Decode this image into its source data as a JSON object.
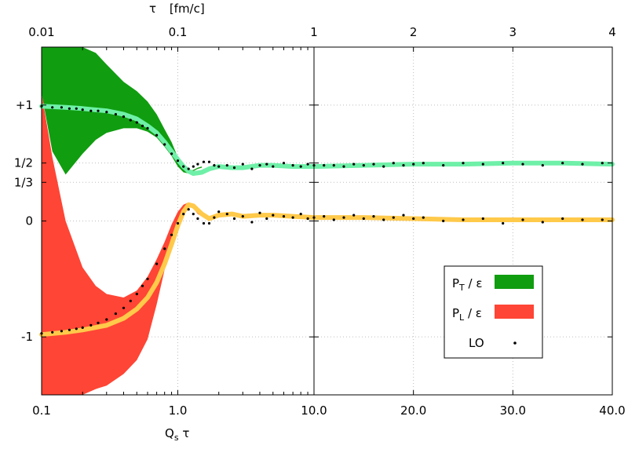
{
  "chart_data": {
    "type": "line",
    "title": "",
    "top_axis": {
      "label": "τ",
      "unit": "[fm/c]",
      "ticks": [
        "0.01",
        "0.1",
        "1",
        "2",
        "3",
        "4"
      ]
    },
    "bottom_axis": {
      "label_main": "Q",
      "label_sub": "s",
      "label_tail": " τ",
      "ticks": [
        "0.1",
        "1.0",
        "10.0",
        "20.0",
        "30.0",
        "40.0"
      ],
      "scale_left": "log",
      "scale_left_range": [
        0.1,
        10
      ],
      "scale_right": "linear",
      "scale_right_range": [
        10,
        40
      ]
    },
    "y_axis": {
      "ticks": [
        {
          "label": "+1",
          "value": 1
        },
        {
          "label": "1/2",
          "value": 0.5
        },
        {
          "label": "1/3",
          "value": 0.3333
        },
        {
          "label": "0",
          "value": 0
        },
        {
          "label": "-1",
          "value": -1
        }
      ],
      "ylim": [
        -1.5,
        1.5
      ]
    },
    "grid": true,
    "legend": {
      "placement": "bottom-right",
      "entries": [
        {
          "main": "P",
          "sub": "T",
          "tail": " / ε",
          "color": "#109d10",
          "kind": "band"
        },
        {
          "main": "P",
          "sub": "L",
          "tail": " / ε",
          "color": "#ff4535",
          "kind": "band"
        },
        {
          "main": "LO",
          "sub": "",
          "tail": "",
          "color": "#000000",
          "kind": "points"
        }
      ]
    },
    "series": [
      {
        "name": "P_T / ε (classical spread)",
        "color": "#109d10",
        "x": [
          0.1,
          0.12,
          0.15,
          0.2,
          0.25,
          0.3,
          0.4,
          0.5,
          0.6,
          0.7,
          0.8,
          0.9,
          1.0,
          1.1,
          1.2,
          1.3,
          1.4,
          1.5
        ],
        "upper": [
          1.5,
          1.5,
          1.5,
          1.5,
          1.45,
          1.35,
          1.2,
          1.12,
          1.03,
          0.92,
          0.79,
          0.68,
          0.55,
          0.46,
          0.43,
          0.44,
          0.46,
          0.47
        ],
        "lower": [
          1.1,
          0.6,
          0.4,
          0.58,
          0.7,
          0.76,
          0.8,
          0.8,
          0.77,
          0.72,
          0.64,
          0.56,
          0.47,
          0.42,
          0.41,
          0.43,
          0.45,
          0.46
        ]
      },
      {
        "name": "P_L / ε (classical spread)",
        "color": "#ff4535",
        "x": [
          0.1,
          0.12,
          0.15,
          0.2,
          0.25,
          0.3,
          0.4,
          0.5,
          0.6,
          0.7,
          0.8,
          0.9,
          1.0,
          1.1,
          1.2,
          1.3,
          1.4,
          1.5
        ],
        "upper": [
          1.1,
          0.55,
          0.0,
          -0.4,
          -0.56,
          -0.63,
          -0.66,
          -0.6,
          -0.48,
          -0.33,
          -0.18,
          -0.03,
          0.08,
          0.14,
          0.16,
          0.12,
          0.07,
          0.05
        ],
        "lower": [
          -1.5,
          -1.5,
          -1.5,
          -1.5,
          -1.45,
          -1.42,
          -1.32,
          -1.2,
          -1.02,
          -0.72,
          -0.42,
          -0.17,
          -0.02,
          0.08,
          0.13,
          0.11,
          0.06,
          0.04
        ]
      },
      {
        "name": "P_T / ε",
        "color": "#6ff0a8",
        "x": [
          0.1,
          0.15,
          0.2,
          0.3,
          0.4,
          0.5,
          0.6,
          0.7,
          0.8,
          0.9,
          1.0,
          1.1,
          1.2,
          1.3,
          1.5,
          1.7,
          2.0,
          2.5,
          3.0,
          4.0,
          5.0,
          7.0,
          10,
          15,
          20,
          25,
          30,
          35,
          40
        ],
        "values": [
          0.99,
          0.98,
          0.97,
          0.95,
          0.92,
          0.88,
          0.82,
          0.76,
          0.68,
          0.6,
          0.53,
          0.47,
          0.43,
          0.41,
          0.42,
          0.45,
          0.47,
          0.46,
          0.46,
          0.48,
          0.48,
          0.47,
          0.47,
          0.48,
          0.49,
          0.49,
          0.5,
          0.5,
          0.49
        ]
      },
      {
        "name": "P_L / ε",
        "color": "#ffc94a",
        "x": [
          0.1,
          0.15,
          0.2,
          0.3,
          0.4,
          0.5,
          0.6,
          0.7,
          0.8,
          0.9,
          1.0,
          1.1,
          1.2,
          1.3,
          1.5,
          1.7,
          2.0,
          2.5,
          3.0,
          4.0,
          5.0,
          7.0,
          10,
          15,
          20,
          25,
          30,
          35,
          40
        ],
        "values": [
          -0.98,
          -0.96,
          -0.94,
          -0.9,
          -0.84,
          -0.76,
          -0.66,
          -0.53,
          -0.37,
          -0.2,
          -0.04,
          0.08,
          0.14,
          0.13,
          0.06,
          0.02,
          0.05,
          0.06,
          0.04,
          0.05,
          0.05,
          0.04,
          0.03,
          0.03,
          0.02,
          0.01,
          0.01,
          0.01,
          0.01
        ]
      },
      {
        "name": "LO P_T / ε",
        "color": "#000000",
        "x": [
          0.1,
          0.12,
          0.14,
          0.16,
          0.18,
          0.2,
          0.23,
          0.26,
          0.3,
          0.35,
          0.4,
          0.45,
          0.5,
          0.55,
          0.6,
          0.7,
          0.8,
          0.9,
          1.0,
          1.1,
          1.2,
          1.3,
          1.4,
          1.55,
          1.7,
          1.85,
          2.0,
          2.3,
          2.6,
          3.0,
          3.5,
          4.0,
          4.5,
          5.0,
          6.0,
          7.0,
          8.0,
          9.0,
          10.0,
          11,
          12,
          13,
          14,
          15,
          16,
          17,
          18,
          19,
          20,
          21,
          23,
          25,
          27,
          29,
          31,
          33,
          35,
          37,
          39
        ],
        "values": [
          0.99,
          0.98,
          0.98,
          0.97,
          0.97,
          0.96,
          0.95,
          0.95,
          0.94,
          0.92,
          0.9,
          0.87,
          0.85,
          0.82,
          0.8,
          0.74,
          0.66,
          0.58,
          0.52,
          0.47,
          0.45,
          0.47,
          0.49,
          0.51,
          0.51,
          0.48,
          0.47,
          0.48,
          0.46,
          0.49,
          0.45,
          0.48,
          0.49,
          0.47,
          0.5,
          0.48,
          0.47,
          0.49,
          0.48,
          0.48,
          0.48,
          0.47,
          0.49,
          0.48,
          0.49,
          0.47,
          0.5,
          0.48,
          0.49,
          0.5,
          0.48,
          0.5,
          0.49,
          0.5,
          0.49,
          0.48,
          0.5,
          0.49,
          0.5
        ]
      },
      {
        "name": "LO P_L / ε",
        "color": "#000000",
        "x": [
          0.1,
          0.12,
          0.14,
          0.16,
          0.18,
          0.2,
          0.23,
          0.26,
          0.3,
          0.35,
          0.4,
          0.45,
          0.5,
          0.55,
          0.6,
          0.7,
          0.8,
          0.9,
          1.0,
          1.1,
          1.2,
          1.3,
          1.4,
          1.55,
          1.7,
          1.85,
          2.0,
          2.3,
          2.6,
          3.0,
          3.5,
          4.0,
          4.5,
          5.0,
          6.0,
          7.0,
          8.0,
          9.0,
          10.0,
          11,
          12,
          13,
          14,
          15,
          16,
          17,
          18,
          19,
          20,
          21,
          23,
          25,
          27,
          29,
          31,
          33,
          35,
          37,
          39
        ],
        "values": [
          -0.97,
          -0.96,
          -0.95,
          -0.94,
          -0.93,
          -0.92,
          -0.9,
          -0.88,
          -0.85,
          -0.8,
          -0.75,
          -0.69,
          -0.63,
          -0.56,
          -0.5,
          -0.37,
          -0.24,
          -0.12,
          -0.02,
          0.06,
          0.1,
          0.06,
          0.02,
          -0.02,
          -0.02,
          0.03,
          0.08,
          0.06,
          0.02,
          0.04,
          -0.01,
          0.07,
          0.02,
          0.05,
          0.04,
          0.03,
          0.06,
          0.02,
          0.03,
          0.04,
          0.01,
          0.03,
          0.05,
          0.02,
          0.04,
          0.01,
          0.03,
          0.05,
          0.02,
          0.03,
          0.0,
          0.01,
          0.02,
          -0.02,
          0.01,
          -0.01,
          0.02,
          0.01,
          0.01
        ]
      }
    ]
  }
}
